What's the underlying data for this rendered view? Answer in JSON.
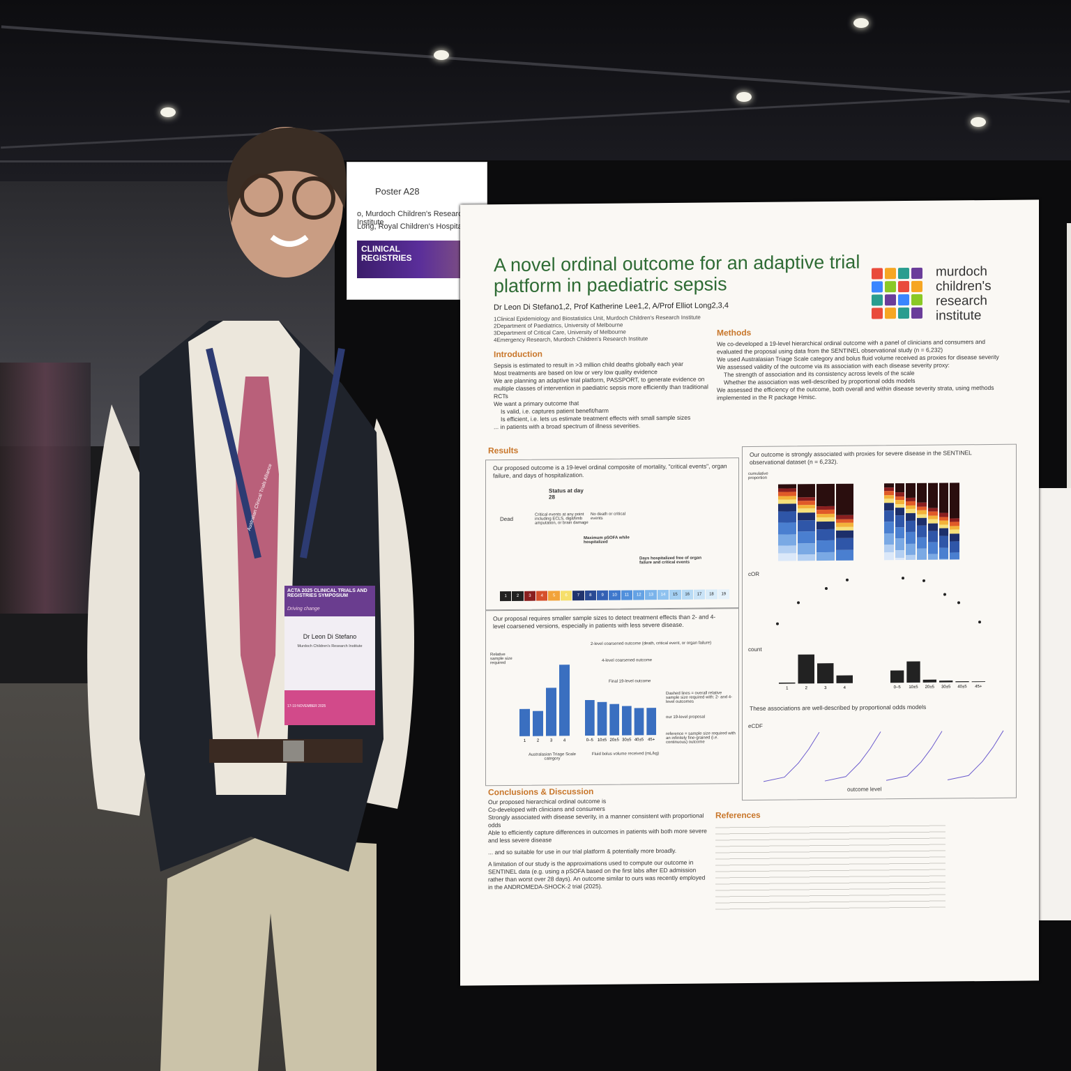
{
  "sign": {
    "poster_number": "Poster A28",
    "line1": "o, Murdoch Children's Research Institute",
    "line2": "Long, Royal Children's Hospital",
    "banner": "CLINICAL\nREGISTRIES"
  },
  "poster": {
    "title": "A novel ordinal outcome for an adaptive trial platform in paediatric sepsis",
    "authors": "Dr Leon Di Stefano1,2, Prof Katherine Lee1,2, A/Prof Elliot Long2,3,4",
    "affiliations": [
      "1Clinical Epidemiology and Biostatistics Unit, Murdoch Children's Research Institute",
      "2Department of Paediatrics, University of Melbourne",
      "3Department of Critical Care, University of Melbourne",
      "4Emergency Research, Murdoch Children's Research Institute"
    ],
    "logo_text": "murdoch children's research institute",
    "logo_colors": [
      "#e94b3c",
      "#f6a623",
      "#2a9d8f",
      "#6a3d9a",
      "#3a86ff",
      "#8ac926"
    ],
    "introduction": {
      "heading": "Introduction",
      "bullets": [
        "Sepsis is estimated to result in >3 million child deaths globally each year",
        "Most treatments are based on low or very low quality evidence",
        "We are planning an adaptive trial platform, PASSPORT, to generate evidence on multiple classes of intervention in paediatric sepsis more efficiently than traditional RCTs",
        "We want a primary outcome that",
        "Is valid, i.e. captures patient benefit/harm",
        "Is efficient, i.e. lets us estimate treatment effects with small sample sizes",
        "... in patients with a broad spectrum of illness severities."
      ]
    },
    "methods": {
      "heading": "Methods",
      "paragraph": "We co-developed a 19-level hierarchical ordinal outcome with a panel of clinicians and consumers and evaluated the proposal using data from the SENTINEL observational study (n = 6,232)",
      "bullets": [
        "We used Australasian Triage Scale category and bolus fluid volume received as proxies for disease severity",
        "We assessed validity of the outcome via its association with each disease severity proxy:",
        "The strength of association and its consistency across levels of the scale",
        "Whether the association was well-described by proportional odds models",
        "We assessed the efficiency of the outcome, both overall and within disease severity strata, using methods implemented in the R package Hmisc."
      ]
    },
    "results": {
      "heading": "Results",
      "box1": "Our proposed outcome is a 19-level ordinal composite of mortality, \"critical events\", organ failure, and days of hospitalization.",
      "box2": "Our proposal requires smaller sample sizes to detect treatment effects than 2- and 4-level coarsened versions, especially in patients with less severe disease.",
      "box3": "Our outcome is strongly associated with proxies for severe disease in the SENTINEL observational dataset (n = 6,232).",
      "box4": "These associations are well-described by proportional odds models",
      "tree": {
        "root": "Status at day 28",
        "dead": "Dead",
        "critical": "Critical events at any point including ECLS, digit/limb amputation, or brain damage",
        "none": "No death or critical events",
        "psofa": "Maximum pSOFA while hospitalized",
        "days": "Days hospitalized free of organ failure and critical events"
      },
      "scale_levels": [
        "1",
        "2",
        "3",
        "4",
        "5",
        "6",
        "7",
        "8",
        "9",
        "10",
        "11",
        "12",
        "13",
        "14",
        "15",
        "16",
        "17",
        "18",
        "19"
      ],
      "axis_labels": {
        "ats": "Australasian Triage Scale category",
        "fluid": "Fluid bolus volume received (mL/kg)",
        "outcome_level": "outcome level",
        "cumulative": "cumulative proportion",
        "cor": "cOR",
        "count": "count",
        "ecdf": "eCDF"
      },
      "sample_size_notes": {
        "two_level": "2-level coarsened outcome (death, critical event, or organ failure)",
        "four_level": "4-level coarsened outcome",
        "final": "Final 19-level outcome",
        "dashed": "Dashed lines = overall relative sample size required with: 2- and 4-level outcomes",
        "ours": "our 19-level proposal",
        "reference": "reference = sample size required with an infinitely fine-grained (i.e. continuous) outcome",
        "relative": "Relative sample size required"
      }
    },
    "conclusions": {
      "heading": "Conclusions & Discussion",
      "lines": [
        "Our proposed hierarchical ordinal outcome is",
        "Co-developed with clinicians and consumers",
        "Strongly associated with disease severity, in a manner consistent with proportional odds",
        "Able to efficiently capture differences in outcomes in patients with both more severe and less severe disease",
        "... and so suitable for use in our trial platform & potentially more broadly.",
        "A limitation of our study is the approximations used to compute our outcome in SENTINEL data (e.g. using a pSOFA based on the first labs after ED admission rather than worst over 28 days). An outcome similar to ours was recently employed in the ANDROMEDA-SHOCK-2 trial (2025)."
      ]
    },
    "references": {
      "heading": "References"
    }
  },
  "badge": {
    "event": "ACTA 2025 CLINICAL TRIALS AND REGISTRIES SYMPOSIUM",
    "tagline": "Driving change",
    "name": "Dr Leon Di Stefano",
    "org": "Murdoch Children's Research Institute",
    "dates": "17-19 NOVEMBER 2025",
    "lanyard": "Australian Clinical Trials Alliance"
  },
  "chart_data": [
    {
      "type": "bar",
      "categories": [
        "1",
        "2",
        "3",
        "4"
      ],
      "series": [
        {
          "values": [
            1.3,
            1.2,
            2.3,
            3.4
          ]
        }
      ],
      "ylim": [
        0,
        4
      ]
    },
    {
      "type": "bar",
      "categories": [
        "0–5",
        "10±5",
        "20±5",
        "30±5",
        "40±5",
        "45+"
      ],
      "series": [
        {
          "values": [
            1.7,
            1.6,
            1.5,
            1.4,
            1.3,
            1.3
          ]
        }
      ],
      "ylim": [
        0,
        4
      ]
    },
    {
      "type": "bar",
      "categories": [
        "1",
        "2",
        "3",
        "4"
      ],
      "series": [
        {
          "values": [
            100,
            2600,
            1800,
            700
          ]
        }
      ],
      "ylim": [
        0,
        3000
      ]
    },
    {
      "type": "bar",
      "categories": [
        "0–5",
        "10±5",
        "20±5",
        "30±5",
        "40±5",
        "45+"
      ],
      "series": [
        {
          "values": [
            1100,
            1900,
            250,
            150,
            80,
            60
          ]
        }
      ],
      "ylim": [
        0,
        3000
      ]
    }
  ]
}
